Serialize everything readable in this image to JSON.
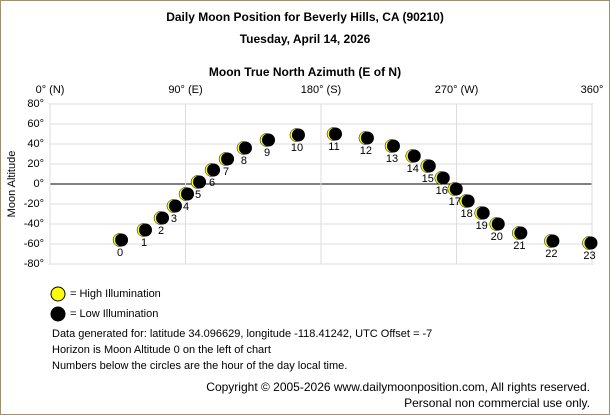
{
  "chart_data": {
    "type": "scatter",
    "title": "Daily Moon Position for Beverly Hills, CA (90210)",
    "subtitle": "Tuesday, April 14, 2026",
    "x_label": "Moon True North Azimuth (E of N)",
    "y_label": "Moon Altitude",
    "x": [
      47.2,
      63.1,
      74.4,
      83.0,
      91.0,
      99.0,
      108.3,
      117.6,
      129.5,
      144.8,
      164.7,
      189.3,
      210.5,
      227.8,
      241.6,
      251.6,
      260.9,
      269.5,
      277.4,
      287.4,
      297.4,
      312.4,
      333.7,
      359
    ],
    "labels": [
      0,
      1,
      2,
      3,
      4,
      5,
      6,
      7,
      8,
      9,
      10,
      11,
      12,
      13,
      14,
      15,
      16,
      17,
      18,
      19,
      20,
      21,
      22,
      23
    ],
    "series": [
      {
        "name": "= High Illumination",
        "color": "#ffff00",
        "values": []
      },
      {
        "name": "= Low Illumination",
        "color": "#000000",
        "values": [
          -56,
          -46,
          -34,
          -22,
          -10,
          2,
          14,
          25,
          36,
          44,
          49,
          50,
          46,
          38,
          28,
          18,
          6,
          -5,
          -17,
          -29,
          -40,
          -49,
          -57,
          -59
        ]
      }
    ],
    "xlim": [
      0,
      360
    ],
    "xticks": [
      {
        "value": 0,
        "label": "0° (N)"
      },
      {
        "value": 90,
        "label": "90° (E)"
      },
      {
        "value": 180,
        "label": "180° (S)"
      },
      {
        "value": 270,
        "label": "270° (W)"
      },
      {
        "value": 360,
        "label": "360°"
      }
    ],
    "ylim": [
      -80,
      80
    ],
    "yticks": [
      {
        "value": 80,
        "label": "80°"
      },
      {
        "value": 60,
        "label": "60°"
      },
      {
        "value": 40,
        "label": "40°"
      },
      {
        "value": 20,
        "label": "20°"
      },
      {
        "value": 0,
        "label": "0°"
      },
      {
        "value": -20,
        "label": "-20°"
      },
      {
        "value": -40,
        "label": "-40°"
      },
      {
        "value": -60,
        "label": "-60°"
      },
      {
        "value": -80,
        "label": "-80°"
      }
    ],
    "grid": true,
    "notes": [
      "Data generated for: latitude 34.096629, longitude -118.41242, UTC Offset = -7",
      "Horizon is Moon Altitude 0 on the left of chart",
      "Numbers below the circles are the hour of the day local time."
    ],
    "copyright": [
      "Copyright © 2005-2026 www.dailymoonposition.com, All rights reserved.",
      "Personal non commercial use only."
    ]
  }
}
